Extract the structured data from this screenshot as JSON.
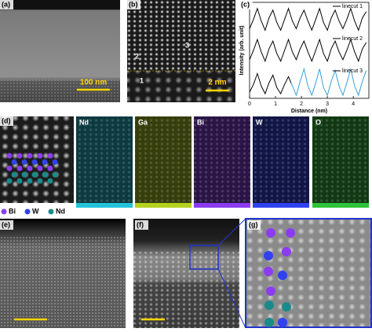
{
  "panels": {
    "a": {
      "label": "(a)",
      "scale_bar": "100 nm"
    },
    "b": {
      "label": "(b)",
      "scale_bar": "2 nm",
      "regions": [
        "1",
        "2",
        "3"
      ]
    },
    "c": {
      "label": "(c)",
      "chart_data": {
        "type": "line",
        "x_label": "Distance (nm)",
        "y_label": "Intensity (arb. unit)",
        "x": [
          0,
          0.15,
          0.3,
          0.45,
          0.6,
          0.75,
          0.9,
          1.05,
          1.2,
          1.35,
          1.5,
          1.65,
          1.8,
          1.95,
          2.1,
          2.25,
          2.4,
          2.55,
          2.7,
          2.85,
          3,
          3.15,
          3.3,
          3.45,
          3.6,
          3.75,
          3.9,
          4.05,
          4.2,
          4.35,
          4.5
        ],
        "series": [
          {
            "name": "linecut 1",
            "color": "#000000",
            "values": [
              2.25,
              2.55,
              2.9,
              2.5,
              2.2,
              2.6,
              2.85,
              2.45,
              2.2,
              2.55,
              2.9,
              2.5,
              2.25,
              2.6,
              2.85,
              2.5,
              2.2,
              2.55,
              2.9,
              2.45,
              2.2,
              2.6,
              2.85,
              2.5,
              2.25,
              2.55,
              2.9,
              2.5,
              2.2,
              2.6,
              2.8
            ]
          },
          {
            "name": "linecut 2",
            "color": "#000000",
            "values": [
              1.25,
              1.55,
              1.9,
              1.5,
              1.2,
              1.6,
              1.85,
              1.45,
              1.2,
              1.55,
              1.9,
              1.5,
              1.25,
              1.6,
              1.85,
              1.5,
              1.2,
              1.55,
              1.9,
              1.45,
              1.2,
              1.6,
              1.85,
              1.5,
              1.25,
              1.55,
              1.9,
              1.5,
              1.2,
              1.6,
              1.8
            ]
          },
          {
            "name": "linecut 3",
            "color": "#000000",
            "highlight_color": "#3a9fd8",
            "highlight_xmin": 1.6,
            "values": [
              0.2,
              0.45,
              0.8,
              0.4,
              0.15,
              0.5,
              0.75,
              0.35,
              0.15,
              0.45,
              0.7,
              0.4,
              0.1,
              0.55,
              0.95,
              0.4,
              0.1,
              0.5,
              0.95,
              0.35,
              0.1,
              0.55,
              0.9,
              0.4,
              0.1,
              0.5,
              0.95,
              0.4,
              0.1,
              0.55,
              0.9
            ]
          }
        ],
        "xlim": [
          0,
          4.6
        ],
        "ylim": [
          0,
          3.1
        ],
        "xticks": [
          0,
          1,
          2,
          3,
          4
        ]
      }
    },
    "d": {
      "label": "(d)",
      "maps": [
        {
          "name": "Nd",
          "color": "#22c4dc"
        },
        {
          "name": "Ga",
          "color": "#b4d21e"
        },
        {
          "name": "Bi",
          "color": "#8c3cf0"
        },
        {
          "name": "W",
          "color": "#3042f0"
        },
        {
          "name": "O",
          "color": "#2fc23a"
        }
      ],
      "legend": [
        "Bi",
        "W",
        "Nd"
      ]
    },
    "e": {
      "label": "(e)"
    },
    "f": {
      "label": "(f)"
    },
    "g": {
      "label": "(g)"
    }
  }
}
